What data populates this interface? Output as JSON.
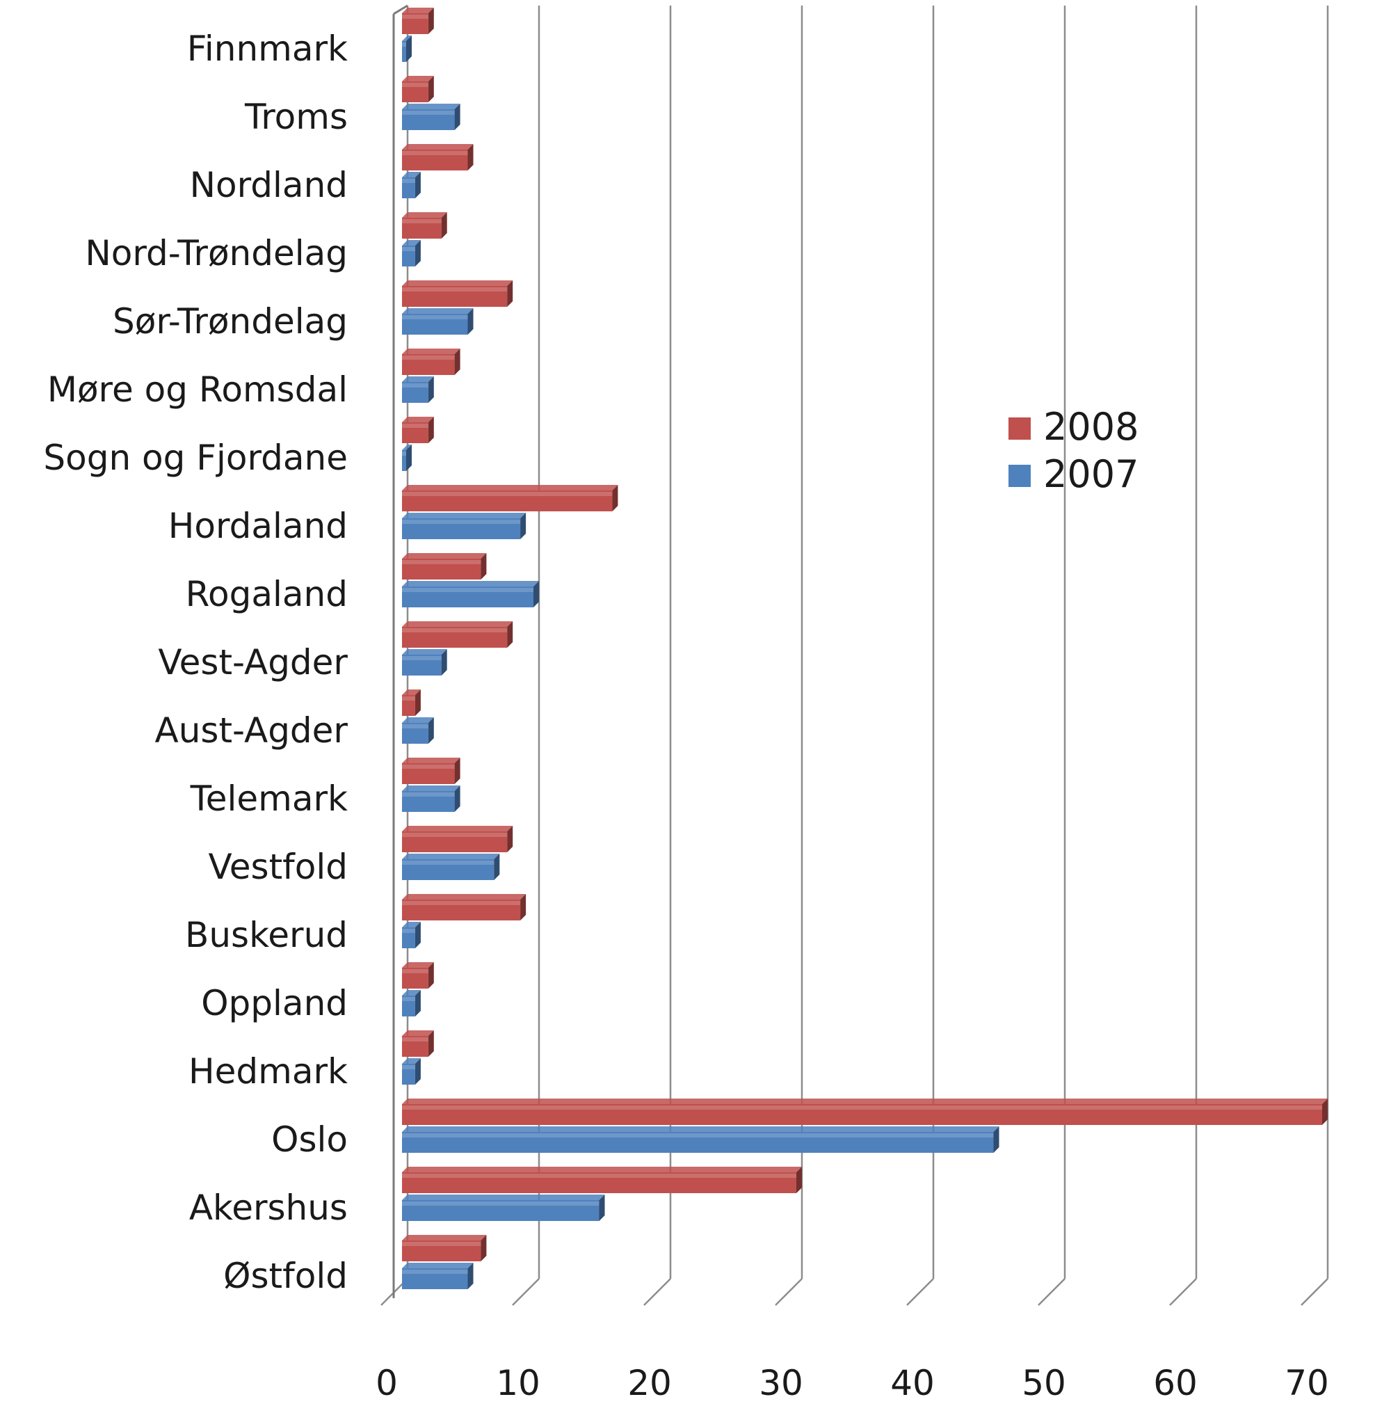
{
  "chart_data": {
    "type": "bar",
    "orientation": "horizontal",
    "style": "3d-clustered",
    "categories": [
      "Finnmark",
      "Troms",
      "Nordland",
      "Nord-Trøndelag",
      "Sør-Trøndelag",
      "Møre og Romsdal",
      "Sogn og Fjordane",
      "Hordaland",
      "Rogaland",
      "Vest-Agder",
      "Aust-Agder",
      "Telemark",
      "Vestfold",
      "Buskerud",
      "Oppland",
      "Hedmark",
      "Oslo",
      "Akershus",
      "Østfold"
    ],
    "series": [
      {
        "name": "2008",
        "color": "#c0504d",
        "values": [
          2,
          2,
          5,
          3,
          8,
          4,
          2,
          16,
          6,
          8,
          1,
          4,
          8,
          9,
          2,
          2,
          70,
          30,
          6
        ]
      },
      {
        "name": "2007",
        "color": "#4f81bd",
        "values": [
          0,
          4,
          1,
          1,
          5,
          2,
          0,
          9,
          10,
          3,
          2,
          4,
          7,
          1,
          1,
          1,
          45,
          15,
          5
        ]
      }
    ],
    "x_ticks": [
      "0",
      "10",
      "20",
      "30",
      "40",
      "50",
      "60",
      "70"
    ],
    "xlim": [
      0,
      70
    ],
    "grid": true,
    "legend_position": "right-center",
    "legend_order": [
      "2008",
      "2007"
    ]
  }
}
